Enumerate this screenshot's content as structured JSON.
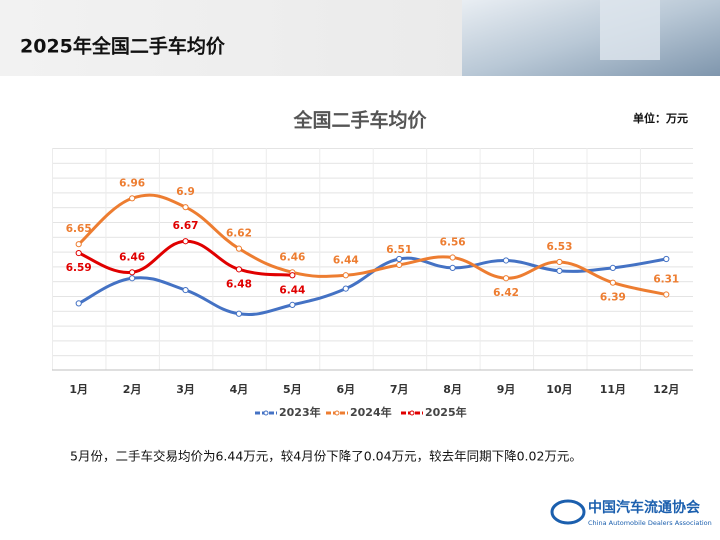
{
  "header": {
    "title": "2025年全国二手车均价"
  },
  "chart_data": {
    "type": "line",
    "title": "全国二手车均价",
    "unit": "单位：万元",
    "categories": [
      "1月",
      "2月",
      "3月",
      "4月",
      "5月",
      "6月",
      "7月",
      "8月",
      "9月",
      "10月",
      "11月",
      "12月"
    ],
    "series": [
      {
        "name": "2023年",
        "color": "#4472c4",
        "values": [
          6.25,
          6.42,
          6.34,
          6.18,
          6.24,
          6.35,
          6.55,
          6.49,
          6.54,
          6.47,
          6.49,
          6.55
        ]
      },
      {
        "name": "2024年",
        "color": "#ed7d31",
        "values": [
          6.65,
          6.96,
          6.9,
          6.62,
          6.46,
          6.44,
          6.51,
          6.56,
          6.42,
          6.53,
          6.39,
          6.31
        ],
        "labels": true
      },
      {
        "name": "2025年",
        "color": "#e00000",
        "values": [
          6.59,
          6.46,
          6.67,
          6.48,
          6.44,
          null,
          null,
          null,
          null,
          null,
          null,
          null
        ],
        "labels": true
      }
    ],
    "ylim": [
      5.8,
      7.3
    ]
  },
  "note": "5月份，二手车交易均价为6.44万元，较4月份下降了0.04万元，较去年同期下降0.02万元。",
  "logo": {
    "name": "中国汽车流通协会",
    "english": "China Automobile Dealers Association"
  }
}
